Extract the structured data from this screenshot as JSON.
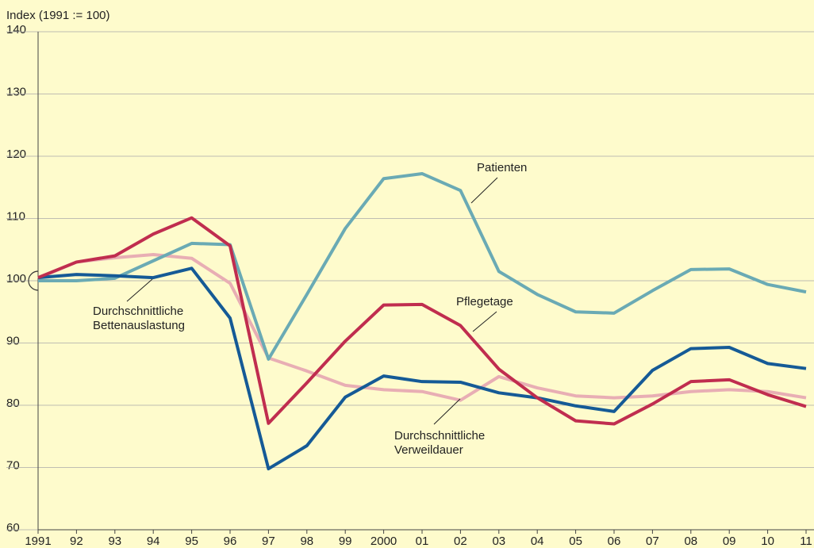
{
  "chart_data": {
    "type": "line",
    "y_axis_label": "Index (1991 := 100)",
    "categories": [
      "1991",
      "92",
      "93",
      "94",
      "95",
      "96",
      "97",
      "98",
      "99",
      "2000",
      "01",
      "02",
      "03",
      "04",
      "05",
      "06",
      "07",
      "08",
      "09",
      "10",
      "11"
    ],
    "series": [
      {
        "name": "Durchschnittliche Verweildauer",
        "color": "#e8aeb4",
        "values": [
          100.4,
          103,
          103.7,
          104.2,
          103.6,
          99.6,
          87.6,
          85.5,
          83.2,
          82.5,
          82.2,
          80.8,
          84.6,
          82.8,
          81.5,
          81.2,
          81.5,
          82.2,
          82.5,
          82.2,
          81.2
        ]
      },
      {
        "name": "Patienten",
        "color": "#6aaab4",
        "values": [
          100,
          100,
          100.4,
          103.2,
          106,
          105.8,
          87.4,
          97.8,
          108.4,
          116.4,
          117.2,
          114.5,
          101.5,
          97.8,
          95,
          94.8,
          98.4,
          101.8,
          101.9,
          99.4,
          98.2
        ]
      },
      {
        "name": "Durchschnittliche Bettenauslastung",
        "color": "#155a96",
        "values": [
          100.5,
          101,
          100.8,
          100.5,
          102,
          94,
          69.8,
          73.5,
          81.3,
          84.7,
          83.8,
          83.7,
          82,
          81.2,
          79.9,
          79,
          85.6,
          89.1,
          89.3,
          86.7,
          85.9
        ]
      },
      {
        "name": "Pflegetage",
        "color": "#c02d4f",
        "values": [
          100.5,
          103,
          104,
          107.5,
          110.1,
          105.6,
          77.1,
          83.6,
          90.3,
          96.1,
          96.2,
          92.8,
          85.8,
          81.2,
          77.5,
          77,
          80.2,
          83.8,
          84.1,
          81.7,
          79.8
        ]
      }
    ],
    "annotations": [
      {
        "lines": [
          "Durchschnittliche",
          "Verweildauer"
        ]
      },
      {
        "lines": [
          "Patienten"
        ]
      },
      {
        "lines": [
          "Durchschnittliche",
          "Bettenauslastung"
        ]
      },
      {
        "lines": [
          "Pflegetage"
        ]
      }
    ],
    "ylim": [
      60,
      140
    ],
    "yticks": [
      60,
      70,
      80,
      90,
      100,
      110,
      120,
      130,
      140
    ],
    "grid": true
  }
}
